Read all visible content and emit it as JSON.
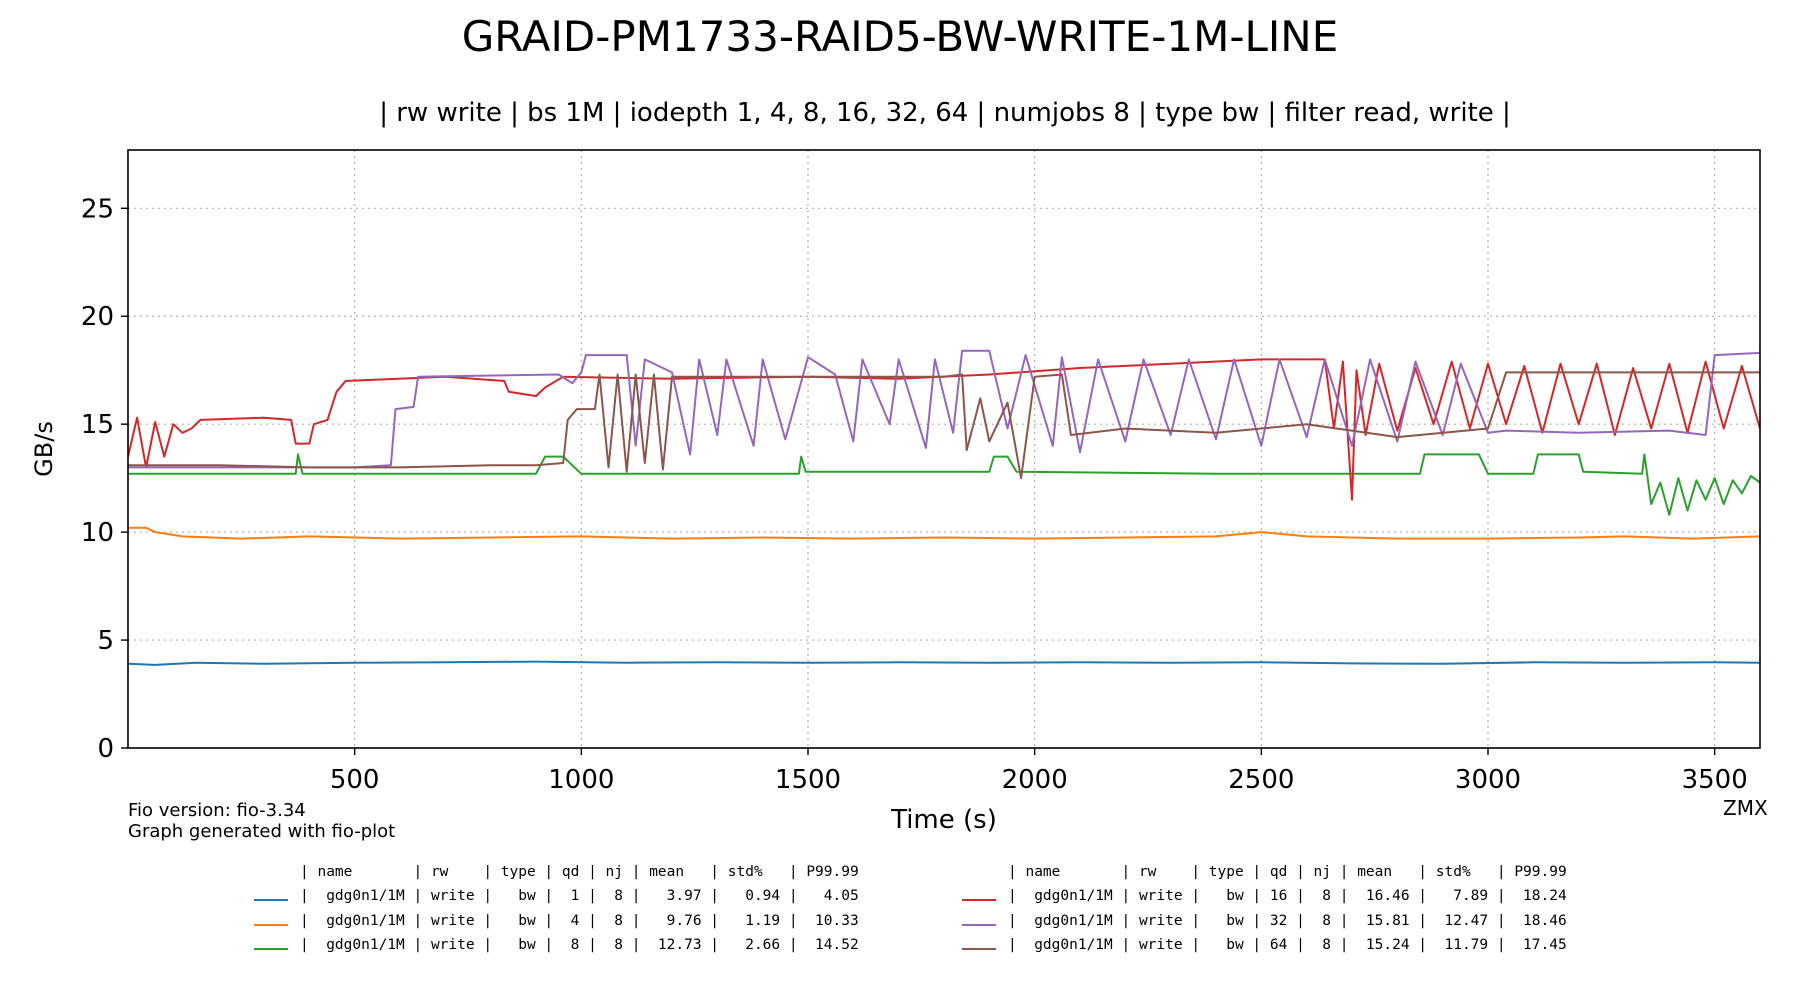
{
  "title": "GRAID-PM1733-RAID5-BW-WRITE-1M-LINE",
  "subtitle": "| rw write | bs 1M | iodepth 1, 4, 8, 16, 32, 64 | numjobs 8 | type bw | filter read, write |",
  "footer": {
    "fio_version": "Fio version: fio-3.34",
    "generator": "Graph generated with fio-plot",
    "brand": "ZMX"
  },
  "chart_data": {
    "type": "line",
    "title": "GRAID-PM1733-RAID5-BW-WRITE-1M-LINE",
    "xlabel": "Time (s)",
    "ylabel": "GB/s",
    "xlim": [
      0,
      3600
    ],
    "ylim": [
      0,
      27.7
    ],
    "xticks": [
      500,
      1000,
      1500,
      2000,
      2500,
      3000,
      3500
    ],
    "yticks": [
      0,
      5,
      10,
      15,
      20,
      25
    ],
    "grid": true,
    "series": [
      {
        "name": "gdg0n1/1M",
        "color": "#1f77b4",
        "qd": "1",
        "nj": "8",
        "mean": "3.97",
        "std": "0.94",
        "p9999": "4.05",
        "points": [
          [
            0,
            3.9
          ],
          [
            60,
            3.85
          ],
          [
            150,
            3.95
          ],
          [
            300,
            3.9
          ],
          [
            500,
            3.95
          ],
          [
            700,
            3.97
          ],
          [
            900,
            4.0
          ],
          [
            1100,
            3.95
          ],
          [
            1300,
            3.97
          ],
          [
            1500,
            3.95
          ],
          [
            1700,
            3.97
          ],
          [
            1900,
            3.95
          ],
          [
            2100,
            3.97
          ],
          [
            2300,
            3.95
          ],
          [
            2500,
            3.97
          ],
          [
            2700,
            3.92
          ],
          [
            2900,
            3.9
          ],
          [
            3100,
            3.97
          ],
          [
            3300,
            3.95
          ],
          [
            3500,
            3.97
          ],
          [
            3600,
            3.95
          ]
        ]
      },
      {
        "name": "gdg0n1/1M",
        "color": "#ff7f0e",
        "qd": "4",
        "nj": "8",
        "mean": "9.76",
        "std": "1.19",
        "p9999": "10.33",
        "points": [
          [
            0,
            10.2
          ],
          [
            40,
            10.2
          ],
          [
            60,
            10.0
          ],
          [
            120,
            9.8
          ],
          [
            250,
            9.7
          ],
          [
            400,
            9.8
          ],
          [
            600,
            9.7
          ],
          [
            800,
            9.75
          ],
          [
            1000,
            9.8
          ],
          [
            1200,
            9.7
          ],
          [
            1400,
            9.75
          ],
          [
            1600,
            9.7
          ],
          [
            1800,
            9.75
          ],
          [
            2000,
            9.7
          ],
          [
            2200,
            9.75
          ],
          [
            2400,
            9.8
          ],
          [
            2500,
            10.0
          ],
          [
            2600,
            9.8
          ],
          [
            2800,
            9.7
          ],
          [
            3000,
            9.7
          ],
          [
            3200,
            9.75
          ],
          [
            3300,
            9.8
          ],
          [
            3450,
            9.7
          ],
          [
            3600,
            9.8
          ]
        ]
      },
      {
        "name": "gdg0n1/1M",
        "color": "#2ca02c",
        "qd": "8",
        "nj": "8",
        "mean": "12.73",
        "std": "2.66",
        "p9999": "14.52",
        "points": [
          [
            0,
            12.7
          ],
          [
            300,
            12.7
          ],
          [
            370,
            12.7
          ],
          [
            375,
            13.6
          ],
          [
            385,
            12.7
          ],
          [
            700,
            12.7
          ],
          [
            900,
            12.7
          ],
          [
            920,
            13.5
          ],
          [
            960,
            13.5
          ],
          [
            1000,
            12.7
          ],
          [
            1400,
            12.7
          ],
          [
            1480,
            12.7
          ],
          [
            1485,
            13.5
          ],
          [
            1495,
            12.8
          ],
          [
            1900,
            12.8
          ],
          [
            1910,
            13.5
          ],
          [
            1940,
            13.5
          ],
          [
            1960,
            12.8
          ],
          [
            2400,
            12.7
          ],
          [
            2700,
            12.7
          ],
          [
            2850,
            12.7
          ],
          [
            2860,
            13.6
          ],
          [
            2980,
            13.6
          ],
          [
            3000,
            12.7
          ],
          [
            3100,
            12.7
          ],
          [
            3110,
            13.6
          ],
          [
            3200,
            13.6
          ],
          [
            3210,
            12.8
          ],
          [
            3340,
            12.7
          ],
          [
            3345,
            13.6
          ],
          [
            3360,
            11.3
          ],
          [
            3380,
            12.3
          ],
          [
            3400,
            10.8
          ],
          [
            3420,
            12.5
          ],
          [
            3440,
            11.0
          ],
          [
            3460,
            12.4
          ],
          [
            3480,
            11.5
          ],
          [
            3500,
            12.5
          ],
          [
            3520,
            11.3
          ],
          [
            3540,
            12.4
          ],
          [
            3560,
            11.8
          ],
          [
            3580,
            12.6
          ],
          [
            3600,
            12.3
          ]
        ]
      },
      {
        "name": "gdg0n1/1M",
        "color": "#d62728",
        "qd": "16",
        "nj": "8",
        "mean": "16.46",
        "std": "7.89",
        "p9999": "18.24",
        "points": [
          [
            0,
            13.5
          ],
          [
            20,
            15.3
          ],
          [
            40,
            13.0
          ],
          [
            60,
            15.1
          ],
          [
            80,
            13.5
          ],
          [
            100,
            15.0
          ],
          [
            120,
            14.6
          ],
          [
            140,
            14.8
          ],
          [
            160,
            15.2
          ],
          [
            300,
            15.3
          ],
          [
            360,
            15.2
          ],
          [
            370,
            14.1
          ],
          [
            400,
            14.1
          ],
          [
            410,
            15.0
          ],
          [
            440,
            15.2
          ],
          [
            460,
            16.5
          ],
          [
            480,
            17.0
          ],
          [
            700,
            17.2
          ],
          [
            830,
            17.0
          ],
          [
            840,
            16.5
          ],
          [
            900,
            16.3
          ],
          [
            920,
            16.7
          ],
          [
            960,
            17.2
          ],
          [
            1200,
            17.1
          ],
          [
            1500,
            17.2
          ],
          [
            1700,
            17.1
          ],
          [
            1900,
            17.3
          ],
          [
            2100,
            17.6
          ],
          [
            2300,
            17.8
          ],
          [
            2500,
            18.0
          ],
          [
            2640,
            18.0
          ],
          [
            2660,
            14.8
          ],
          [
            2680,
            17.9
          ],
          [
            2700,
            11.5
          ],
          [
            2710,
            17.5
          ],
          [
            2730,
            14.5
          ],
          [
            2760,
            17.8
          ],
          [
            2800,
            14.7
          ],
          [
            2840,
            17.6
          ],
          [
            2880,
            15.0
          ],
          [
            2920,
            17.9
          ],
          [
            2960,
            14.8
          ],
          [
            3000,
            17.8
          ],
          [
            3040,
            15.0
          ],
          [
            3080,
            17.7
          ],
          [
            3120,
            14.6
          ],
          [
            3160,
            17.8
          ],
          [
            3200,
            15.0
          ],
          [
            3240,
            17.8
          ],
          [
            3280,
            14.5
          ],
          [
            3320,
            17.6
          ],
          [
            3360,
            14.8
          ],
          [
            3400,
            17.8
          ],
          [
            3440,
            14.6
          ],
          [
            3480,
            17.9
          ],
          [
            3520,
            14.8
          ],
          [
            3560,
            17.7
          ],
          [
            3600,
            14.8
          ]
        ]
      },
      {
        "name": "gdg0n1/1M",
        "color": "#9467bd",
        "qd": "32",
        "nj": "8",
        "mean": "15.81",
        "std": "12.47",
        "p9999": "18.46",
        "points": [
          [
            0,
            13.0
          ],
          [
            500,
            13.0
          ],
          [
            580,
            13.1
          ],
          [
            590,
            15.7
          ],
          [
            630,
            15.8
          ],
          [
            640,
            17.2
          ],
          [
            950,
            17.3
          ],
          [
            980,
            16.9
          ],
          [
            1000,
            17.4
          ],
          [
            1010,
            18.2
          ],
          [
            1100,
            18.2
          ],
          [
            1120,
            14.0
          ],
          [
            1140,
            18.0
          ],
          [
            1200,
            17.4
          ],
          [
            1240,
            13.6
          ],
          [
            1260,
            18.0
          ],
          [
            1300,
            14.5
          ],
          [
            1320,
            18.0
          ],
          [
            1380,
            14.0
          ],
          [
            1400,
            18.0
          ],
          [
            1450,
            14.3
          ],
          [
            1500,
            18.1
          ],
          [
            1560,
            17.3
          ],
          [
            1600,
            14.2
          ],
          [
            1620,
            18.0
          ],
          [
            1680,
            15.0
          ],
          [
            1700,
            18.0
          ],
          [
            1760,
            13.9
          ],
          [
            1780,
            18.0
          ],
          [
            1820,
            14.6
          ],
          [
            1840,
            18.4
          ],
          [
            1900,
            18.4
          ],
          [
            1940,
            14.8
          ],
          [
            1980,
            18.2
          ],
          [
            2040,
            14.0
          ],
          [
            2060,
            18.1
          ],
          [
            2100,
            13.7
          ],
          [
            2140,
            18.0
          ],
          [
            2200,
            14.2
          ],
          [
            2240,
            18.0
          ],
          [
            2300,
            14.5
          ],
          [
            2340,
            18.0
          ],
          [
            2400,
            14.3
          ],
          [
            2440,
            18.0
          ],
          [
            2500,
            14.0
          ],
          [
            2540,
            18.0
          ],
          [
            2600,
            14.4
          ],
          [
            2640,
            18.0
          ],
          [
            2700,
            14.0
          ],
          [
            2740,
            18.0
          ],
          [
            2800,
            14.2
          ],
          [
            2840,
            17.9
          ],
          [
            2900,
            14.5
          ],
          [
            2940,
            17.8
          ],
          [
            3000,
            14.6
          ],
          [
            3040,
            14.7
          ],
          [
            3200,
            14.6
          ],
          [
            3400,
            14.7
          ],
          [
            3480,
            14.5
          ],
          [
            3500,
            18.2
          ],
          [
            3600,
            18.3
          ]
        ]
      },
      {
        "name": "gdg0n1/1M",
        "color": "#8c564b",
        "qd": "64",
        "nj": "8",
        "mean": "15.24",
        "std": "11.79",
        "p9999": "17.45",
        "points": [
          [
            0,
            13.1
          ],
          [
            200,
            13.1
          ],
          [
            400,
            13.0
          ],
          [
            600,
            13.0
          ],
          [
            800,
            13.1
          ],
          [
            900,
            13.1
          ],
          [
            960,
            13.2
          ],
          [
            970,
            15.2
          ],
          [
            990,
            15.7
          ],
          [
            1030,
            15.7
          ],
          [
            1040,
            17.3
          ],
          [
            1060,
            13.0
          ],
          [
            1080,
            17.3
          ],
          [
            1100,
            12.8
          ],
          [
            1120,
            17.3
          ],
          [
            1140,
            13.2
          ],
          [
            1160,
            17.3
          ],
          [
            1180,
            12.9
          ],
          [
            1200,
            17.2
          ],
          [
            1500,
            17.2
          ],
          [
            1800,
            17.2
          ],
          [
            1840,
            17.3
          ],
          [
            1850,
            13.8
          ],
          [
            1880,
            16.2
          ],
          [
            1900,
            14.2
          ],
          [
            1940,
            16.0
          ],
          [
            1970,
            12.5
          ],
          [
            2000,
            17.2
          ],
          [
            2060,
            17.3
          ],
          [
            2080,
            14.5
          ],
          [
            2200,
            14.8
          ],
          [
            2400,
            14.6
          ],
          [
            2600,
            15.0
          ],
          [
            2800,
            14.4
          ],
          [
            3000,
            14.8
          ],
          [
            3040,
            17.4
          ],
          [
            3300,
            17.4
          ],
          [
            3600,
            17.4
          ]
        ]
      }
    ],
    "legend_headers": [
      "name",
      "rw",
      "type",
      "qd",
      "nj",
      "mean",
      "std%",
      "P99.99"
    ],
    "legend_rw": "write",
    "legend_type": "bw"
  }
}
